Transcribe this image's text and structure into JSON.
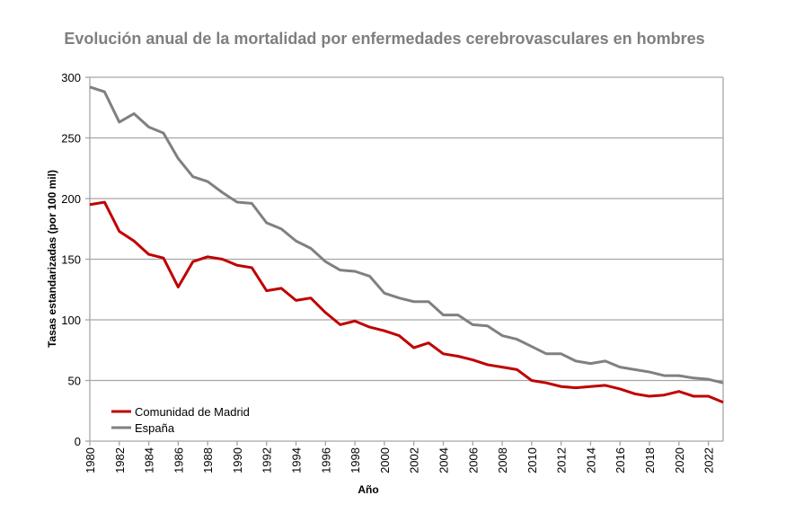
{
  "chart_data": {
    "type": "line",
    "title": "Evolución anual de la mortalidad por enfermedades cerebrovasculares en hombres",
    "xlabel": "Año",
    "ylabel": "Tasas estandarizadas (por 100 mil)",
    "ylim": [
      0,
      300
    ],
    "yticks": [
      0,
      50,
      100,
      150,
      200,
      250,
      300
    ],
    "xlim": [
      1980,
      2023
    ],
    "xticks": [
      1980,
      1982,
      1984,
      1986,
      1988,
      1990,
      1992,
      1994,
      1996,
      1998,
      2000,
      2002,
      2004,
      2006,
      2008,
      2010,
      2012,
      2014,
      2016,
      2018,
      2020,
      2022
    ],
    "grid": "horizontal",
    "legend": "bottom-left",
    "x": [
      1980,
      1981,
      1982,
      1983,
      1984,
      1985,
      1986,
      1987,
      1988,
      1989,
      1990,
      1991,
      1992,
      1993,
      1994,
      1995,
      1996,
      1997,
      1998,
      1999,
      2000,
      2001,
      2002,
      2003,
      2004,
      2005,
      2006,
      2007,
      2008,
      2009,
      2010,
      2011,
      2012,
      2013,
      2014,
      2015,
      2016,
      2017,
      2018,
      2019,
      2020,
      2021,
      2022,
      2023
    ],
    "series": [
      {
        "name": "Comunidad de Madrid",
        "color": "#c00000",
        "values": [
          195,
          197,
          173,
          165,
          154,
          151,
          127,
          148,
          152,
          150,
          145,
          143,
          124,
          126,
          116,
          118,
          106,
          96,
          99,
          94,
          91,
          87,
          77,
          81,
          72,
          70,
          67,
          63,
          61,
          59,
          50,
          48,
          45,
          44,
          45,
          46,
          43,
          39,
          37,
          38,
          41,
          37,
          37,
          32
        ]
      },
      {
        "name": "España",
        "color": "#808080",
        "values": [
          292,
          288,
          263,
          270,
          259,
          254,
          233,
          218,
          214,
          205,
          197,
          196,
          180,
          175,
          165,
          159,
          148,
          141,
          140,
          136,
          122,
          118,
          115,
          115,
          104,
          104,
          96,
          95,
          87,
          84,
          78,
          72,
          72,
          66,
          64,
          66,
          61,
          59,
          57,
          54,
          54,
          52,
          51,
          48
        ]
      }
    ]
  }
}
